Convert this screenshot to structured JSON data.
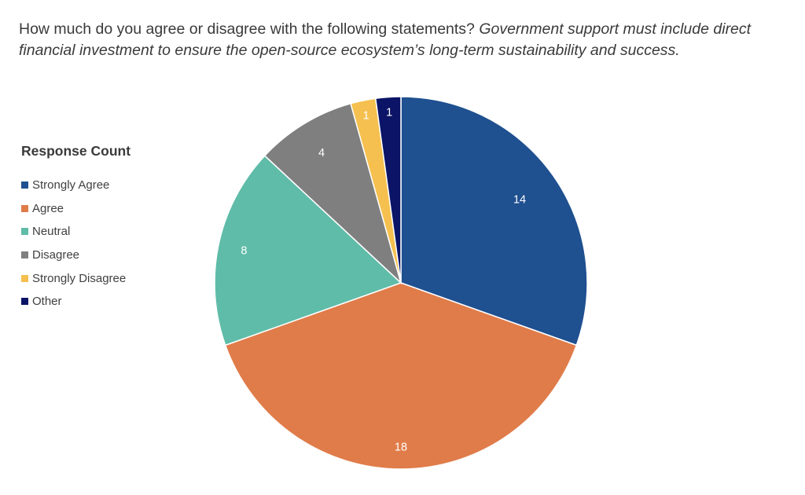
{
  "question": {
    "lead": "How much do you agree or disagree with the following statements?",
    "statement": "Government support must include direct financial investment to ensure the open-source ecosystem’s long-term sustainability and success."
  },
  "chart_data": {
    "type": "pie",
    "legend_title": "Response Count",
    "legend_position": "left",
    "categories": [
      "Strongly Agree",
      "Agree",
      "Neutral",
      "Disagree",
      "Strongly Disagree",
      "Other"
    ],
    "values": [
      14,
      18,
      8,
      4,
      1,
      1
    ],
    "data_labels": [
      "14",
      "18",
      "8",
      "4",
      "1",
      "1"
    ],
    "colors": [
      "#1f5090",
      "#e07c4a",
      "#5fbca8",
      "#7f7f7f",
      "#f5c04f",
      "#0b1466"
    ]
  }
}
